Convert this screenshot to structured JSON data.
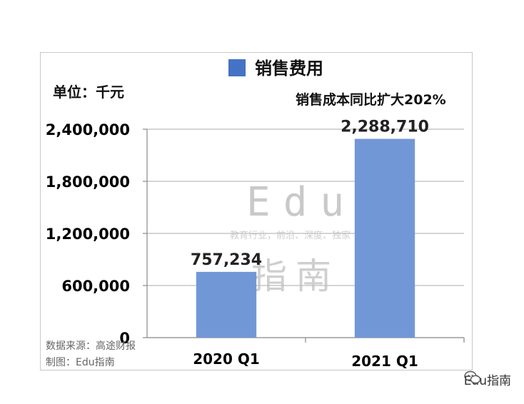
{
  "legend": {
    "label": "销售费用",
    "color": "#4472c4"
  },
  "unit": "单位：千元",
  "annotation": "销售成本同比扩大202%",
  "watermark": {
    "brand": "Edu",
    "tagline": "教育行业，前沿、深度、独家",
    "cn": "指南"
  },
  "footnotes": {
    "source": "数据来源：高途财报",
    "maker": "制图：Edu指南"
  },
  "brand_mark": {
    "icon": "wechat-icon",
    "text": "Edu指南"
  },
  "chart_data": {
    "type": "bar",
    "categories": [
      "2020 Q1",
      "2021 Q1"
    ],
    "series": [
      {
        "name": "销售费用",
        "values": [
          757234,
          2288710
        ],
        "color": "#7297d6"
      }
    ],
    "data_labels": [
      "757,234",
      "2,288,710"
    ],
    "yticks": [
      0,
      600000,
      1200000,
      1800000,
      2400000
    ],
    "ytick_labels": [
      "0",
      "600,000",
      "1,200,000",
      "1,800,000",
      "2,400,000"
    ],
    "ylim": [
      0,
      2400000
    ],
    "grid": true,
    "legend_position": "top"
  }
}
